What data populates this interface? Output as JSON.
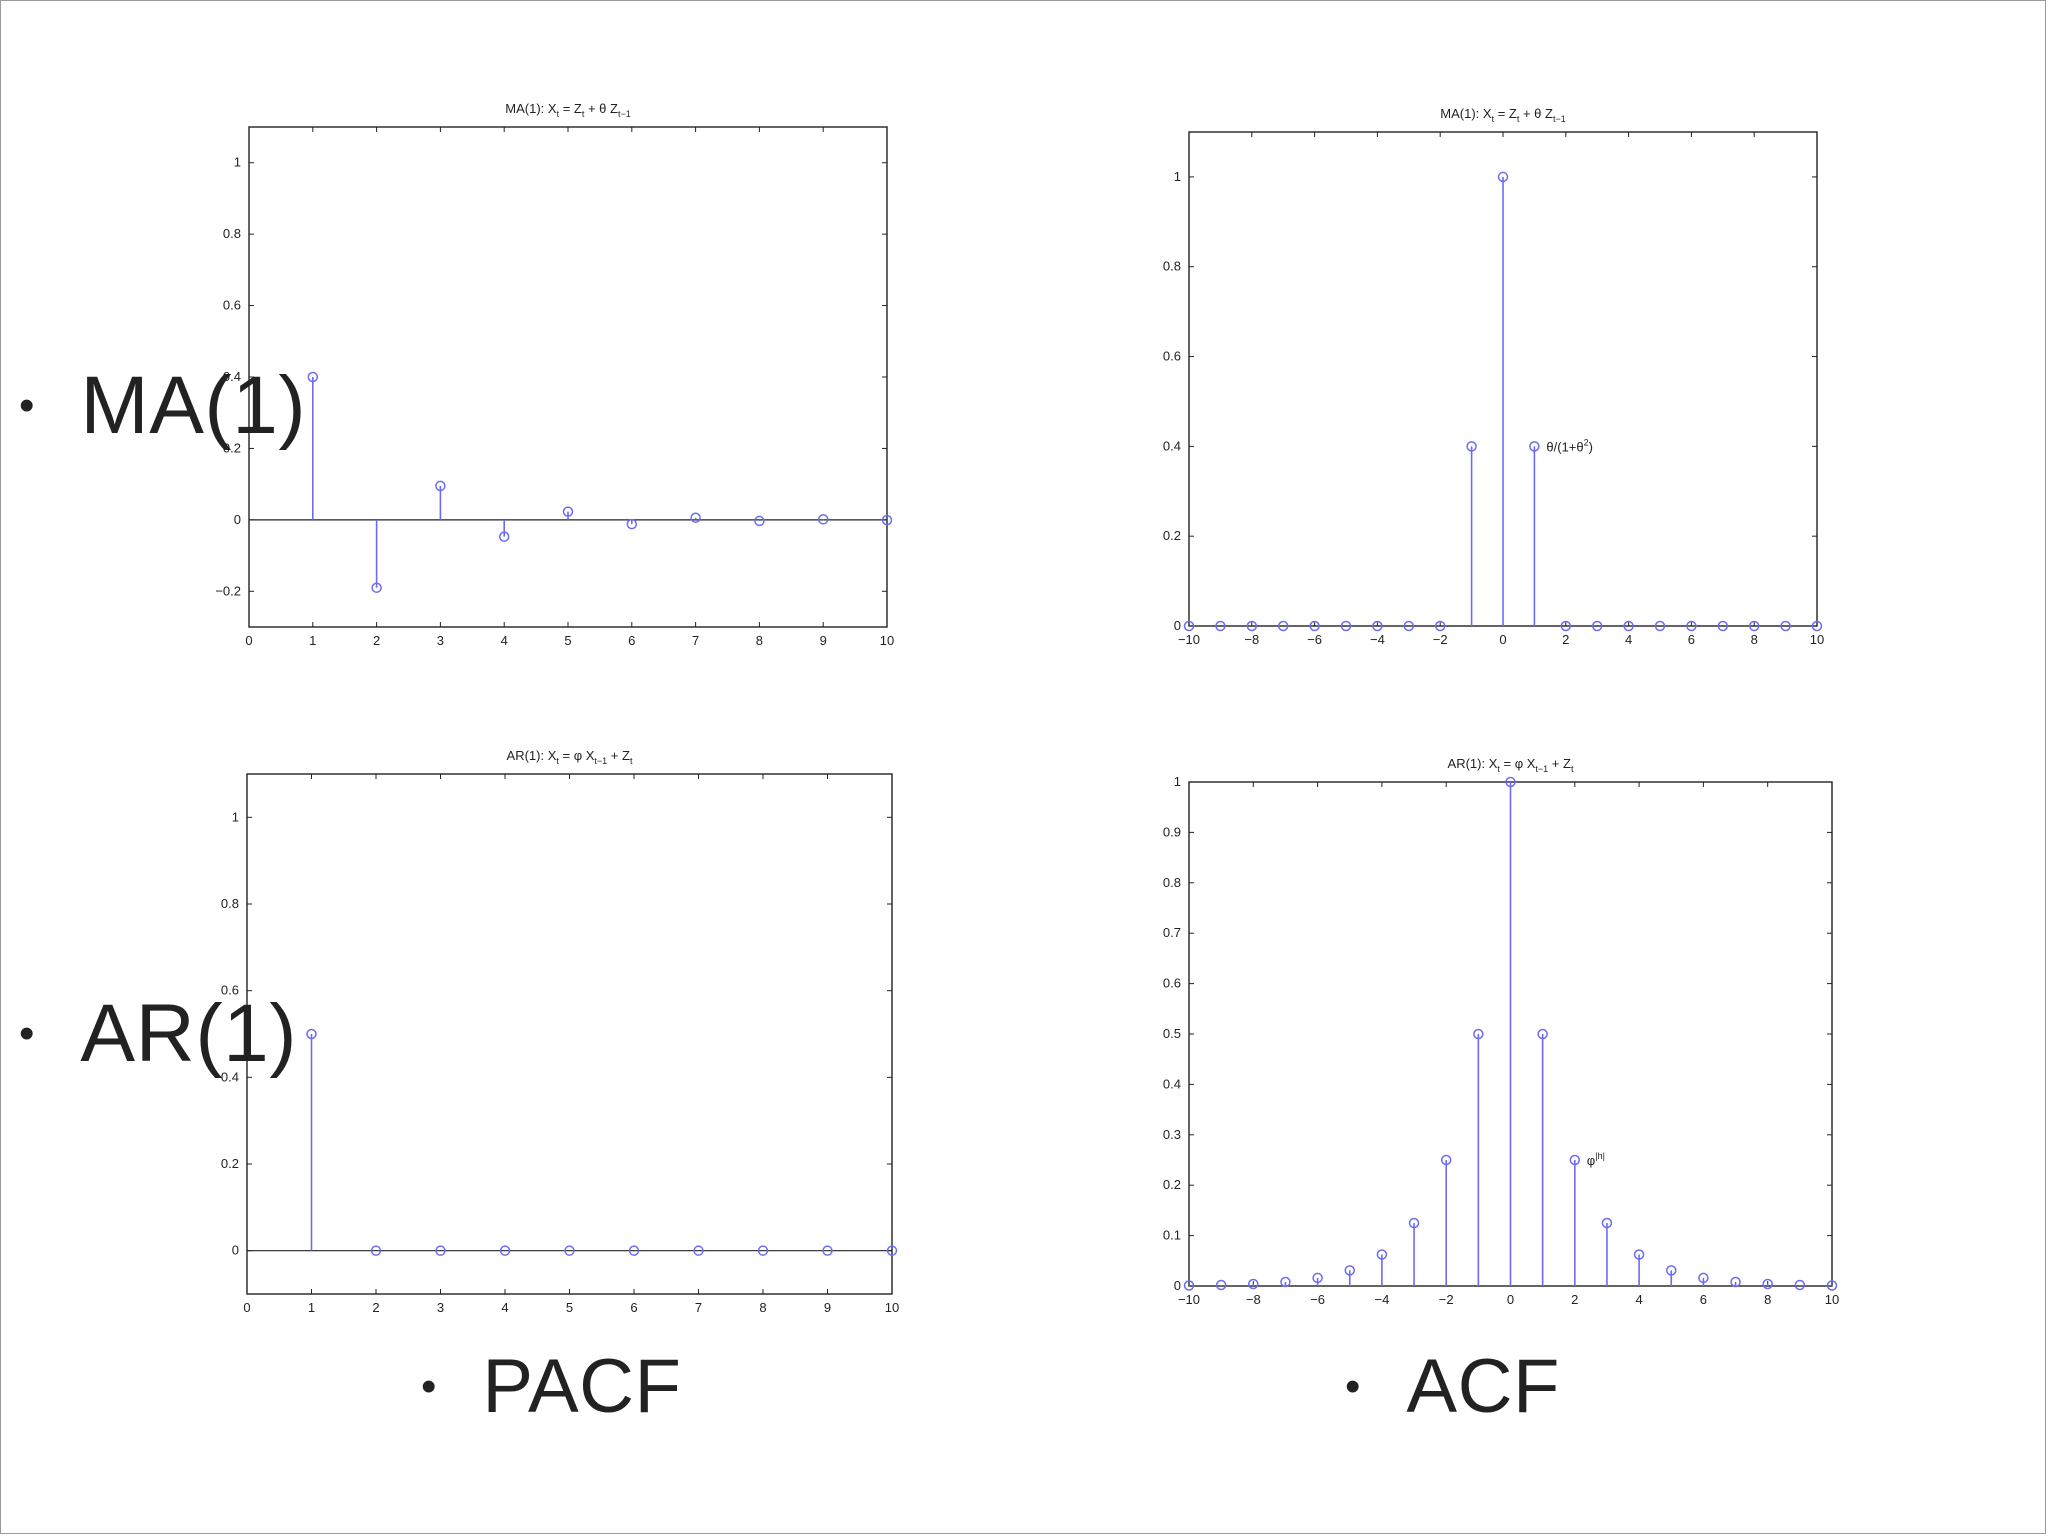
{
  "slide": {
    "row_labels": [
      "MA(1)",
      "AR(1)"
    ],
    "column_labels": [
      "PACF",
      "ACF"
    ],
    "bullet_symbol": "•"
  },
  "colors": {
    "stem": "#6c6cf2",
    "axis": "#222222",
    "background": "#ffffff"
  },
  "chart_data": [
    {
      "type": "stem",
      "position": "top-left",
      "title": "MA(1): X_t = Z_t + θ Z_{t−1}",
      "title_parts": {
        "a": "MA(1): X",
        "b": "t",
        "c": " = Z",
        "d": "t",
        "e": " + θ Z",
        "f": "t−1"
      },
      "xlim": [
        0,
        10
      ],
      "ylim": [
        -0.3,
        1.1
      ],
      "xticks": [
        0,
        1,
        2,
        3,
        4,
        5,
        6,
        7,
        8,
        9,
        10
      ],
      "yticks": [
        -0.2,
        0,
        0.2,
        0.4,
        0.6,
        0.8,
        1
      ],
      "ytick_labels": [
        "−0.2",
        "0",
        "0.2",
        "0.4",
        "0.6",
        "0.8",
        "1"
      ],
      "x": [
        1,
        2,
        3,
        4,
        5,
        6,
        7,
        8,
        9,
        10
      ],
      "values": [
        0.4,
        -0.19,
        0.095,
        -0.047,
        0.023,
        -0.012,
        0.006,
        -0.003,
        0.0015,
        -0.0007
      ],
      "zero_line": true,
      "annotation": null
    },
    {
      "type": "stem",
      "position": "top-right",
      "title": "MA(1): X_t = Z_t + θ Z_{t−1}",
      "title_parts": {
        "a": "MA(1): X",
        "b": "t",
        "c": " = Z",
        "d": "t",
        "e": " + θ Z",
        "f": "t−1"
      },
      "xlim": [
        -10,
        10
      ],
      "ylim": [
        0,
        1.1
      ],
      "xticks": [
        -10,
        -8,
        -6,
        -4,
        -2,
        0,
        2,
        4,
        6,
        8,
        10
      ],
      "xtick_labels": [
        "−10",
        "−8",
        "−6",
        "−4",
        "−2",
        "0",
        "2",
        "4",
        "6",
        "8",
        "10"
      ],
      "yticks": [
        0,
        0.2,
        0.4,
        0.6,
        0.8,
        1
      ],
      "ytick_labels": [
        "0",
        "0.2",
        "0.4",
        "0.6",
        "0.8",
        "1"
      ],
      "x": [
        -10,
        -9,
        -8,
        -7,
        -6,
        -5,
        -4,
        -3,
        -2,
        -1,
        0,
        1,
        2,
        3,
        4,
        5,
        6,
        7,
        8,
        9,
        10
      ],
      "values": [
        0,
        0,
        0,
        0,
        0,
        0,
        0,
        0,
        0,
        0.4,
        1,
        0.4,
        0,
        0,
        0,
        0,
        0,
        0,
        0,
        0,
        0
      ],
      "zero_line": false,
      "annotation": {
        "x": 1,
        "y": 0.4,
        "text": "θ/(1+θ",
        "sup": "2",
        "tail": ")"
      }
    },
    {
      "type": "stem",
      "position": "bottom-left",
      "title": "AR(1): X_t = φ X_{t−1} + Z_t",
      "title_parts": {
        "a": "AR(1): X",
        "b": "t",
        "c": " = φ X",
        "d": "t−1",
        "e": " + Z",
        "f": "t"
      },
      "xlim": [
        0,
        10
      ],
      "ylim": [
        -0.1,
        1.1
      ],
      "xticks": [
        0,
        1,
        2,
        3,
        4,
        5,
        6,
        7,
        8,
        9,
        10
      ],
      "yticks": [
        0,
        0.2,
        0.4,
        0.6,
        0.8,
        1
      ],
      "ytick_labels": [
        "0",
        "0.2",
        "0.4",
        "0.6",
        "0.8",
        "1"
      ],
      "x": [
        1,
        2,
        3,
        4,
        5,
        6,
        7,
        8,
        9,
        10
      ],
      "values": [
        0.5,
        0,
        0,
        0,
        0,
        0,
        0,
        0,
        0,
        0
      ],
      "zero_line": true,
      "annotation": null
    },
    {
      "type": "stem",
      "position": "bottom-right",
      "title": "AR(1): X_t = φ X_{t−1} + Z_t",
      "title_parts": {
        "a": "AR(1): X",
        "b": "t",
        "c": " = φ X",
        "d": "t−1",
        "e": " + Z",
        "f": "t"
      },
      "xlim": [
        -10,
        10
      ],
      "ylim": [
        0,
        1
      ],
      "xticks": [
        -10,
        -8,
        -6,
        -4,
        -2,
        0,
        2,
        4,
        6,
        8,
        10
      ],
      "xtick_labels": [
        "−10",
        "−8",
        "−6",
        "−4",
        "−2",
        "0",
        "2",
        "4",
        "6",
        "8",
        "10"
      ],
      "yticks": [
        0,
        0.1,
        0.2,
        0.3,
        0.4,
        0.5,
        0.6,
        0.7,
        0.8,
        0.9,
        1
      ],
      "ytick_labels": [
        "0",
        "0.1",
        "0.2",
        "0.3",
        "0.4",
        "0.5",
        "0.6",
        "0.7",
        "0.8",
        "0.9",
        "1"
      ],
      "x": [
        -10,
        -9,
        -8,
        -7,
        -6,
        -5,
        -4,
        -3,
        -2,
        -1,
        0,
        1,
        2,
        3,
        4,
        5,
        6,
        7,
        8,
        9,
        10
      ],
      "values": [
        0.001,
        0.002,
        0.004,
        0.008,
        0.016,
        0.031,
        0.0625,
        0.125,
        0.25,
        0.5,
        1,
        0.5,
        0.25,
        0.125,
        0.0625,
        0.031,
        0.016,
        0.008,
        0.004,
        0.002,
        0.001
      ],
      "zero_line": false,
      "annotation": {
        "x": 2,
        "y": 0.25,
        "text": "φ",
        "sup": "|h|",
        "tail": ""
      }
    }
  ]
}
